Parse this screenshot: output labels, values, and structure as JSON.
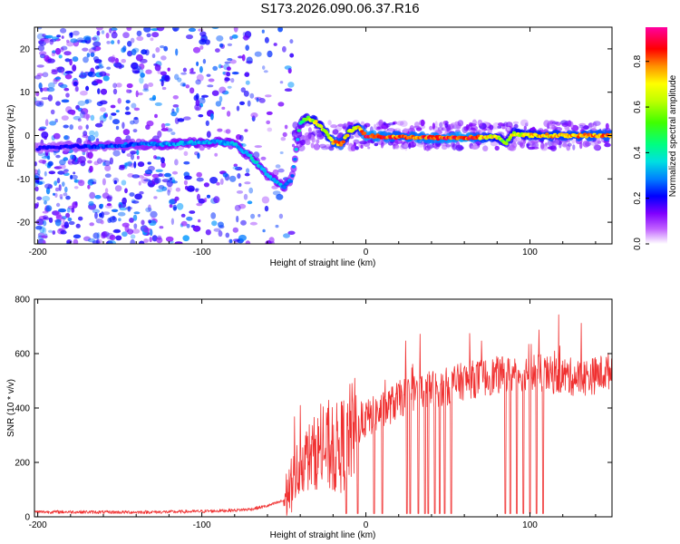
{
  "title": "S173.2026.090.06.37.R16",
  "chart_data": [
    {
      "type": "heatmap",
      "title": "S173.2026.090.06.37.R16",
      "xlabel": "Height of straight line (km)",
      "ylabel": "Frequency (Hz)",
      "xlim": [
        -202,
        150
      ],
      "ylim": [
        -25,
        25
      ],
      "xticks": [
        -200,
        -100,
        0,
        100
      ],
      "yticks": [
        -20,
        -10,
        0,
        10,
        20
      ],
      "colorbar": {
        "label": "Normalized spectral amplitude",
        "range": [
          0.0,
          0.95
        ],
        "ticks": [
          0.0,
          0.2,
          0.4,
          0.6,
          0.8
        ],
        "tick_labels": [
          "0.0",
          "0.2",
          "0.4",
          "0.6",
          "0.8"
        ],
        "colormap": [
          "#ffffff",
          "#8000ff",
          "#0000ff",
          "#00c0ff",
          "#00ff80",
          "#80ff00",
          "#ffff00",
          "#ff8000",
          "#ff0000",
          "#ff00a0"
        ]
      },
      "ridge": {
        "x": [
          -200,
          -180,
          -160,
          -140,
          -120,
          -100,
          -90,
          -80,
          -70,
          -60,
          -50,
          -45,
          -40,
          -35,
          -30,
          -25,
          -20,
          -15,
          -10,
          -5,
          0,
          10,
          20,
          40,
          60,
          80,
          85,
          90,
          100,
          120,
          150
        ],
        "frequency": [
          -3,
          -2.5,
          -2.5,
          -2,
          -2,
          -1.5,
          -1.5,
          -2,
          -5,
          -9,
          -12,
          -10,
          3,
          4,
          3,
          1,
          -1.5,
          -2,
          1,
          2,
          0,
          -0.3,
          -0.3,
          -0.5,
          -0.5,
          -0.3,
          -2,
          0.5,
          0,
          0,
          0
        ],
        "amplitude": [
          0.2,
          0.2,
          0.25,
          0.25,
          0.3,
          0.3,
          0.3,
          0.3,
          0.35,
          0.3,
          0.3,
          0.25,
          0.4,
          0.55,
          0.6,
          0.55,
          0.7,
          0.75,
          0.55,
          0.6,
          0.85,
          0.8,
          0.75,
          0.8,
          0.85,
          0.6,
          0.5,
          0.6,
          0.65,
          0.7,
          0.75
        ]
      },
      "noise": [
        {
          "x_range": [
            -202,
            -45
          ],
          "y_range": [
            -25,
            25
          ],
          "amplitude": 0.15
        },
        {
          "x_range": [
            -45,
            150
          ],
          "y_range": [
            -3,
            3
          ],
          "amplitude": 0.08
        }
      ]
    },
    {
      "type": "line",
      "xlabel": "Height of straight line (km)",
      "ylabel": "SNR (10 * v/v)",
      "xlim": [
        -202,
        150
      ],
      "ylim": [
        0,
        800
      ],
      "xticks": [
        -200,
        -100,
        0,
        100
      ],
      "yticks": [
        0,
        200,
        400,
        600,
        800
      ],
      "color": "#f03030",
      "series": [
        {
          "x": [
            -200,
            -180,
            -160,
            -140,
            -120,
            -100,
            -80,
            -70,
            -60,
            -50,
            -45,
            -40,
            -35,
            -30,
            -25,
            -20,
            -15,
            -10,
            -5,
            0,
            10,
            20,
            30,
            40,
            50,
            60,
            70,
            80,
            90,
            100,
            110,
            120,
            130,
            140,
            150
          ],
          "values": [
            18,
            18,
            17,
            17,
            18,
            20,
            24,
            28,
            40,
            60,
            120,
            200,
            220,
            240,
            250,
            240,
            260,
            300,
            330,
            360,
            390,
            430,
            460,
            470,
            480,
            500,
            510,
            520,
            520,
            540,
            520,
            520,
            510,
            520,
            540
          ]
        }
      ],
      "dropouts_x": [
        -12,
        -5,
        5,
        10,
        25,
        27,
        32,
        36,
        38,
        42,
        45,
        48,
        52,
        85,
        88,
        92,
        96,
        100,
        104,
        108
      ]
    }
  ]
}
